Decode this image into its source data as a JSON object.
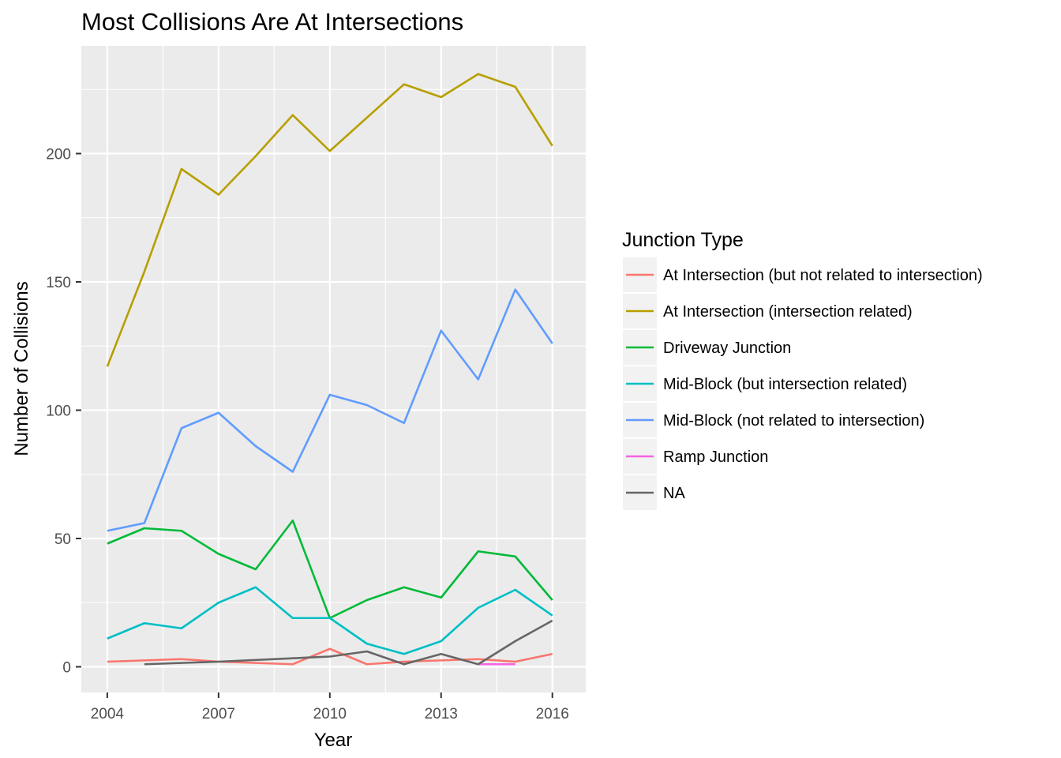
{
  "chart_data": {
    "type": "line",
    "title": "Most Collisions Are At Intersections",
    "xlabel": "Year",
    "ylabel": "Number of Collisions",
    "xlim": [
      2003.3,
      2016.9
    ],
    "ylim": [
      -10,
      242
    ],
    "x_ticks": [
      2004,
      2007,
      2010,
      2013,
      2016
    ],
    "y_ticks": [
      0,
      50,
      100,
      150,
      200
    ],
    "grid": true,
    "legend": {
      "title": "Junction Type",
      "position": "right"
    },
    "series": [
      {
        "name": "At Intersection (but not related to intersection)",
        "color": "#F8766D",
        "points": [
          [
            2004,
            2
          ],
          [
            2006,
            3
          ],
          [
            2007,
            2
          ],
          [
            2009,
            1
          ],
          [
            2010,
            7
          ],
          [
            2011,
            1
          ],
          [
            2012,
            2
          ],
          [
            2014,
            3
          ],
          [
            2015,
            2
          ],
          [
            2016,
            5
          ]
        ]
      },
      {
        "name": "At Intersection (intersection related)",
        "color": "#B79F00",
        "points": [
          [
            2004,
            117
          ],
          [
            2005,
            154
          ],
          [
            2006,
            194
          ],
          [
            2007,
            184
          ],
          [
            2008,
            199
          ],
          [
            2009,
            215
          ],
          [
            2010,
            201
          ],
          [
            2011,
            214
          ],
          [
            2012,
            227
          ],
          [
            2013,
            222
          ],
          [
            2014,
            231
          ],
          [
            2015,
            226
          ],
          [
            2016,
            203
          ]
        ]
      },
      {
        "name": "Driveway Junction",
        "color": "#00BA38",
        "points": [
          [
            2004,
            48
          ],
          [
            2005,
            54
          ],
          [
            2006,
            53
          ],
          [
            2007,
            44
          ],
          [
            2008,
            38
          ],
          [
            2009,
            57
          ],
          [
            2010,
            19
          ],
          [
            2011,
            26
          ],
          [
            2012,
            31
          ],
          [
            2013,
            27
          ],
          [
            2014,
            45
          ],
          [
            2015,
            43
          ],
          [
            2016,
            26
          ]
        ]
      },
      {
        "name": "Mid-Block (but intersection related)",
        "color": "#00BFC4",
        "points": [
          [
            2004,
            11
          ],
          [
            2005,
            17
          ],
          [
            2006,
            15
          ],
          [
            2007,
            25
          ],
          [
            2008,
            31
          ],
          [
            2009,
            19
          ],
          [
            2010,
            19
          ],
          [
            2011,
            9
          ],
          [
            2012,
            5
          ],
          [
            2013,
            10
          ],
          [
            2014,
            23
          ],
          [
            2015,
            30
          ],
          [
            2016,
            20
          ]
        ]
      },
      {
        "name": "Mid-Block (not related to intersection)",
        "color": "#619CFF",
        "points": [
          [
            2004,
            53
          ],
          [
            2005,
            56
          ],
          [
            2006,
            93
          ],
          [
            2007,
            99
          ],
          [
            2008,
            86
          ],
          [
            2009,
            76
          ],
          [
            2010,
            106
          ],
          [
            2011,
            102
          ],
          [
            2012,
            95
          ],
          [
            2013,
            131
          ],
          [
            2014,
            112
          ],
          [
            2015,
            147
          ],
          [
            2016,
            126
          ]
        ]
      },
      {
        "name": "Ramp Junction",
        "color": "#F564E3",
        "points": [
          [
            2014,
            1
          ],
          [
            2015,
            1
          ]
        ]
      },
      {
        "name": "NA",
        "color": "#666666",
        "points": [
          [
            2005,
            1
          ],
          [
            2007,
            2
          ],
          [
            2010,
            4
          ],
          [
            2011,
            6
          ],
          [
            2012,
            1
          ],
          [
            2013,
            5
          ],
          [
            2014,
            1
          ],
          [
            2015,
            10
          ],
          [
            2016,
            18
          ]
        ]
      }
    ]
  }
}
